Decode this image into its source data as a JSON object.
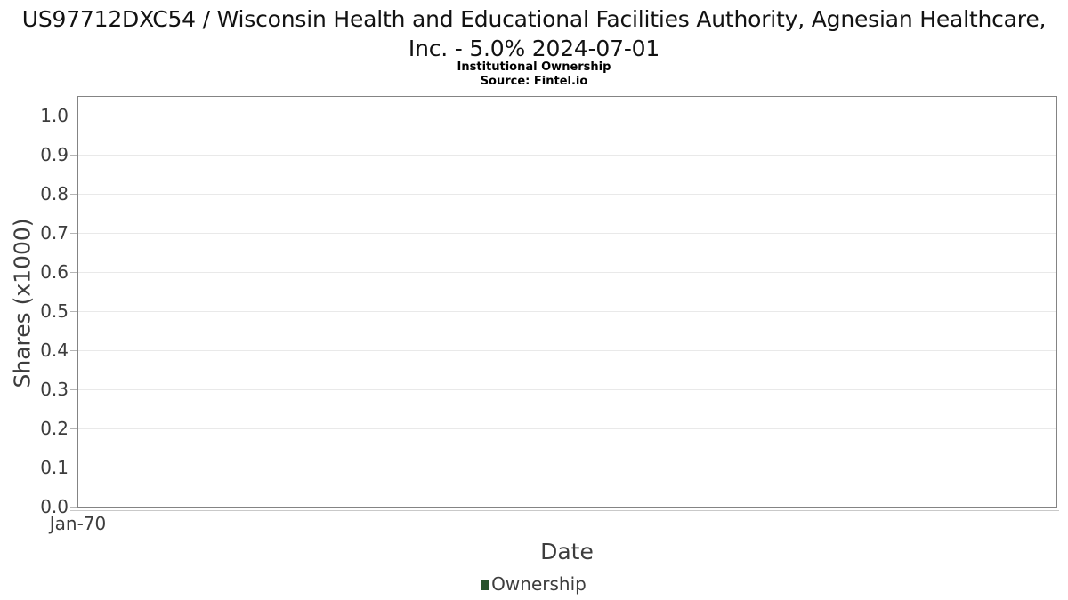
{
  "title": "US97712DXC54 / Wisconsin Health and Educational Facilities Authority, Agnesian Healthcare, Inc. - 5.0% 2024-07-01",
  "subtitle": "Institutional Ownership",
  "source": "Source: Fintel.io",
  "chart_data": {
    "type": "line",
    "title": "US97712DXC54 / Wisconsin Health and Educational Facilities Authority, Agnesian Healthcare, Inc. - 5.0% 2024-07-01",
    "subtitle": "Institutional Ownership",
    "source": "Source: Fintel.io",
    "xlabel": "Date",
    "ylabel": "Shares (x1000)",
    "x_ticks": [
      "Jan-70"
    ],
    "y_ticks": [
      "0.0",
      "0.1",
      "0.2",
      "0.3",
      "0.4",
      "0.5",
      "0.6",
      "0.7",
      "0.8",
      "0.9",
      "1.0"
    ],
    "ylim": [
      0.0,
      1.05
    ],
    "grid": "horizontal",
    "legend_position": "bottom",
    "series": [
      {
        "name": "Ownership",
        "color": "#27522b",
        "values": []
      }
    ]
  },
  "colors": {
    "background": "#ffffff",
    "grid": "#e9e9e9",
    "spine": "#848484",
    "axis_text": "#3d3d3d",
    "title_text": "#121212",
    "legend_green": "#27522b"
  }
}
